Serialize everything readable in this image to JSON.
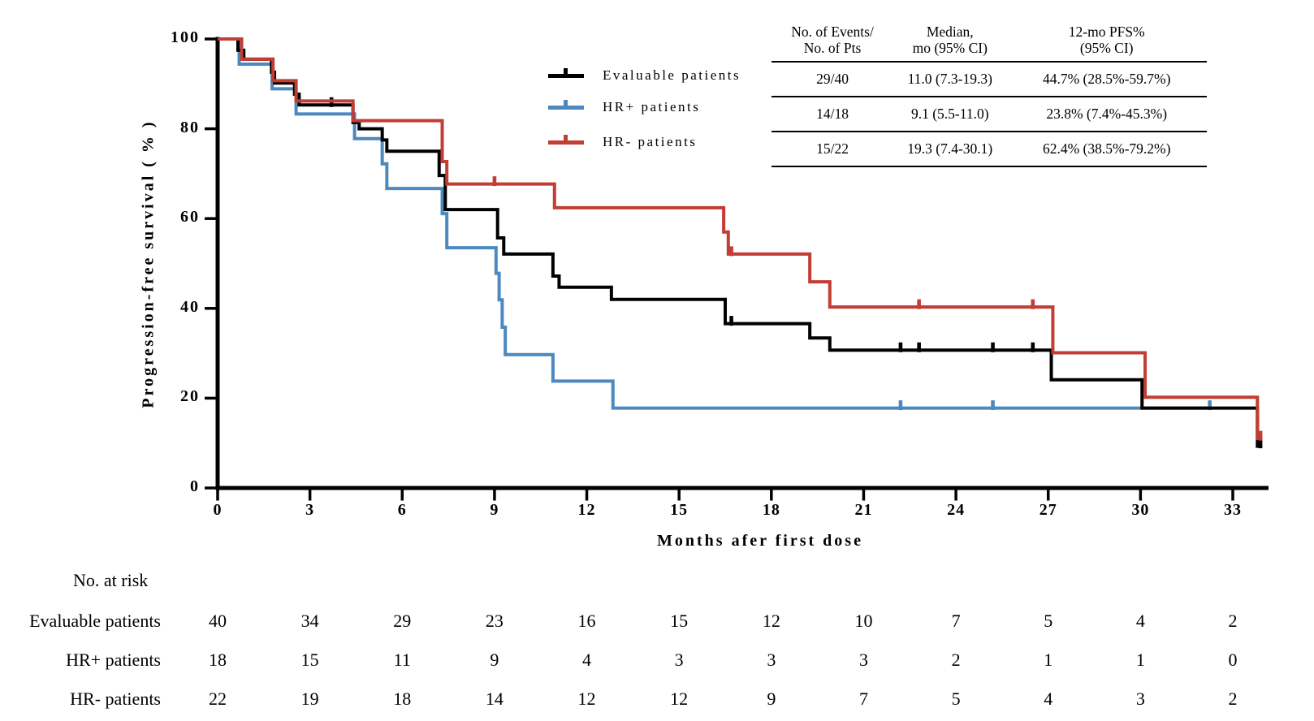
{
  "figure": {
    "y_axis_label": "Progression-free survival ( % )",
    "x_axis_label": "Months afer first dose",
    "risk_title": "No. at risk",
    "colors": {
      "black": "#000000",
      "blue": "#4c89bf",
      "red": "#c23d33",
      "background": "#ffffff"
    }
  },
  "stats_headers": [
    [
      "No. of Events/",
      "No. of Pts"
    ],
    [
      "Median,",
      "mo (95% CI)"
    ],
    [
      "12-mo PFS%",
      "(95% CI)"
    ]
  ],
  "chart_data": {
    "type": "line",
    "subtype": "kaplan_meier_step",
    "title": "",
    "xlabel": "Months afer first dose",
    "ylabel": "Progression-free survival ( % )",
    "xlim": [
      0,
      34.2
    ],
    "ylim": [
      0,
      100
    ],
    "x_ticks": [
      0,
      3,
      6,
      9,
      12,
      15,
      18,
      21,
      24,
      27,
      30,
      33
    ],
    "y_ticks": [
      0,
      20,
      40,
      60,
      80,
      100
    ],
    "grid": false,
    "legend_position": "upper-left-of-table",
    "series": [
      {
        "name": "Evaluable patients",
        "color": "#000000",
        "stats": {
          "events_pts": "29/40",
          "median": "11.0 (7.3-19.3)",
          "pfs12": "44.7% (28.5%-59.7%)"
        },
        "steps": [
          [
            0,
            100
          ],
          [
            0.66,
            97.5
          ],
          [
            0.85,
            95.5
          ],
          [
            1.75,
            92.6
          ],
          [
            1.85,
            90.2
          ],
          [
            2.5,
            87.7
          ],
          [
            2.65,
            85.3
          ],
          [
            4.4,
            81.4
          ],
          [
            4.6,
            80.0
          ],
          [
            5.35,
            77.5
          ],
          [
            5.5,
            75.0
          ],
          [
            7.2,
            69.6
          ],
          [
            7.4,
            62.0
          ],
          [
            9.1,
            55.7
          ],
          [
            9.3,
            52.1
          ],
          [
            10.9,
            47.2
          ],
          [
            11.1,
            44.7
          ],
          [
            12.8,
            42.0
          ],
          [
            16.5,
            36.6
          ],
          [
            19.25,
            33.4
          ],
          [
            19.9,
            30.7
          ],
          [
            27.1,
            24.1
          ],
          [
            30.05,
            17.8
          ],
          [
            33.8,
            9.3
          ]
        ],
        "end_x": 33.95,
        "censor_marks": [
          [
            3.7,
            85.3
          ],
          [
            16.7,
            36.6
          ],
          [
            22.2,
            30.7
          ],
          [
            22.8,
            30.7
          ],
          [
            25.2,
            30.7
          ],
          [
            26.5,
            30.7
          ],
          [
            33.9,
            9.3
          ]
        ]
      },
      {
        "name": "HR+ patients",
        "color": "#4c89bf",
        "stats": {
          "events_pts": "14/18",
          "median": "9.1 (5.5-11.0)",
          "pfs12": "23.8% (7.4%-45.3%)"
        },
        "steps": [
          [
            0,
            100
          ],
          [
            0.7,
            94.4
          ],
          [
            1.77,
            88.9
          ],
          [
            2.55,
            83.3
          ],
          [
            4.45,
            77.8
          ],
          [
            5.35,
            72.2
          ],
          [
            5.5,
            66.7
          ],
          [
            7.3,
            61.1
          ],
          [
            7.45,
            53.5
          ],
          [
            9.05,
            47.8
          ],
          [
            9.15,
            41.9
          ],
          [
            9.25,
            35.8
          ],
          [
            9.35,
            29.7
          ],
          [
            10.9,
            23.8
          ],
          [
            12.85,
            17.8
          ]
        ],
        "end_x": 32.3,
        "censor_marks": [
          [
            22.2,
            17.8
          ],
          [
            25.2,
            17.8
          ],
          [
            32.25,
            17.8
          ]
        ]
      },
      {
        "name": "HR- patients",
        "color": "#c23d33",
        "stats": {
          "events_pts": "15/22",
          "median": "19.3 (7.4-30.1)",
          "pfs12": "62.4% (38.5%-79.2%)"
        },
        "steps": [
          [
            0,
            100
          ],
          [
            0.78,
            95.5
          ],
          [
            1.8,
            90.7
          ],
          [
            2.55,
            86.2
          ],
          [
            4.4,
            81.8
          ],
          [
            7.3,
            72.7
          ],
          [
            7.45,
            67.7
          ],
          [
            10.95,
            62.4
          ],
          [
            16.45,
            57.0
          ],
          [
            16.6,
            52.1
          ],
          [
            19.25,
            45.9
          ],
          [
            19.9,
            40.3
          ],
          [
            27.15,
            30.1
          ],
          [
            30.15,
            20.2
          ],
          [
            33.8,
            11.0
          ]
        ],
        "end_x": 33.95,
        "censor_marks": [
          [
            9.0,
            67.7
          ],
          [
            16.7,
            52.1
          ],
          [
            22.8,
            40.3
          ],
          [
            26.5,
            40.3
          ],
          [
            33.9,
            11.0
          ]
        ]
      }
    ],
    "number_at_risk": {
      "times": [
        0,
        3,
        6,
        9,
        12,
        15,
        18,
        21,
        24,
        27,
        30,
        33
      ],
      "groups": [
        {
          "name": "Evaluable patients",
          "counts": [
            40,
            34,
            29,
            23,
            16,
            15,
            12,
            10,
            7,
            5,
            4,
            2
          ]
        },
        {
          "name": "HR+ patients",
          "counts": [
            18,
            15,
            11,
            9,
            4,
            3,
            3,
            3,
            2,
            1,
            1,
            0
          ]
        },
        {
          "name": "HR- patients",
          "counts": [
            22,
            19,
            18,
            14,
            12,
            12,
            9,
            7,
            5,
            4,
            3,
            2
          ]
        }
      ]
    }
  }
}
